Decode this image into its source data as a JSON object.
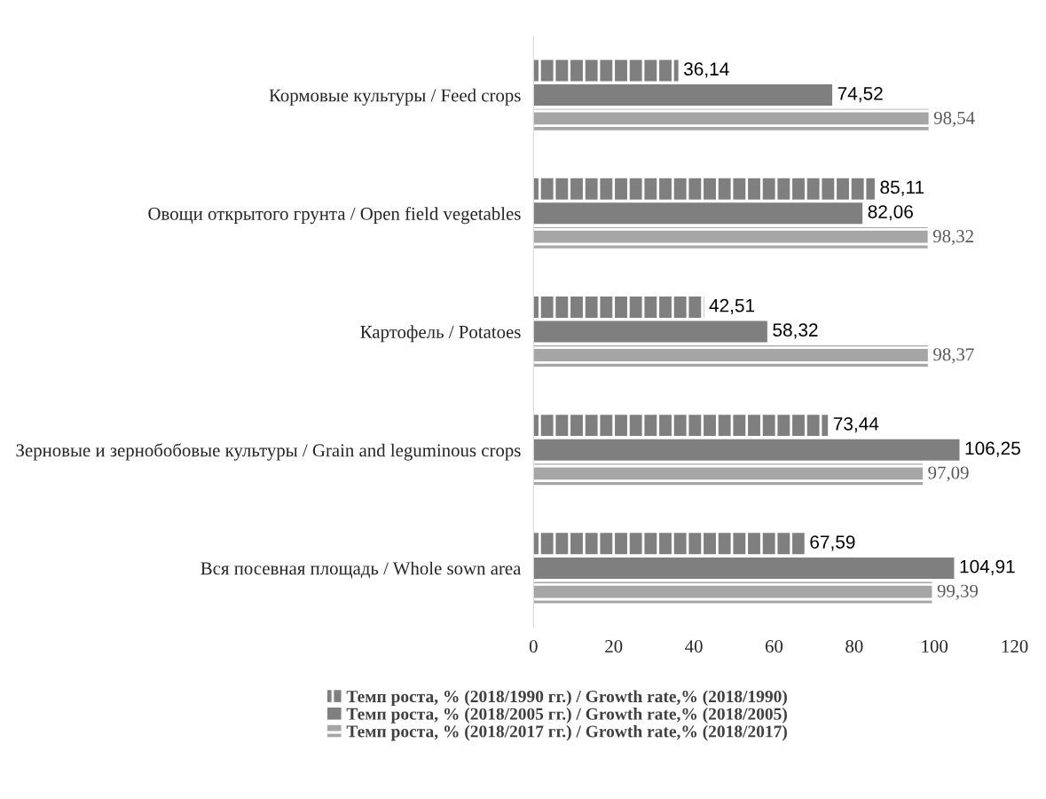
{
  "chart_data": {
    "type": "bar",
    "orientation": "horizontal",
    "categories": [
      "Кормовые культуры / Feed crops",
      "Овощи открытого грунта / Open field vegetables",
      "Картофель / Potatoes",
      "Зерновые и зернобобовые культуры / Grain and leguminous crops",
      "Вся посевная площадь / Whole sown area"
    ],
    "series": [
      {
        "name": "Темп роста, % (2018/1990 гг.) / Growth rate,% (2018/1990)",
        "color": "#7f7f7f",
        "values": [
          36.14,
          85.11,
          42.51,
          73.44,
          67.59
        ],
        "value_labels": [
          "36,14",
          "85,11",
          "42,51",
          "73,44",
          "67,59"
        ]
      },
      {
        "name": "Темп роста, % (2018/2005 гг.) / Growth rate,% (2018/2005)",
        "color": "#7f7f7f",
        "values": [
          74.52,
          82.06,
          58.32,
          106.25,
          104.91
        ],
        "value_labels": [
          "74,52",
          "82,06",
          "58,32",
          "106,25",
          "104,91"
        ]
      },
      {
        "name": "Темп роста, % (2018/2017 гг.) / Growth rate,% (2018/2017)",
        "color": "#a6a6a6",
        "values": [
          98.54,
          98.32,
          98.37,
          97.09,
          99.39
        ],
        "value_labels": [
          "98,54",
          "98,32",
          "98,37",
          "97,09",
          "99,39"
        ]
      }
    ],
    "xlim": [
      0,
      120
    ],
    "xticks": [
      0,
      20,
      40,
      60,
      80,
      100,
      120
    ],
    "grid": false,
    "legend": "bottom"
  }
}
